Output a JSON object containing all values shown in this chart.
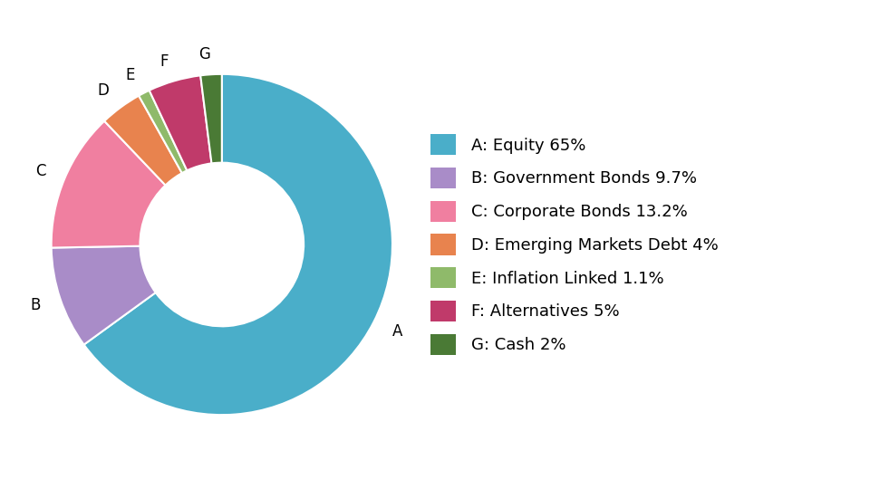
{
  "labels": [
    "A",
    "B",
    "C",
    "D",
    "E",
    "F",
    "G"
  ],
  "values": [
    65,
    9.7,
    13.2,
    4,
    1.1,
    5,
    2
  ],
  "colors": [
    "#4aaec9",
    "#a98cc8",
    "#f07fa0",
    "#e8834e",
    "#8fba6a",
    "#c03a6a",
    "#4a7a35"
  ],
  "legend_labels": [
    "A: Equity 65%",
    "B: Government Bonds 9.7%",
    "C: Corporate Bonds 13.2%",
    "D: Emerging Markets Debt 4%",
    "E: Inflation Linked 1.1%",
    "F: Alternatives 5%",
    "G: Cash 2%"
  ],
  "wedge_label_fontsize": 12,
  "legend_fontsize": 13,
  "background_color": "#ffffff"
}
